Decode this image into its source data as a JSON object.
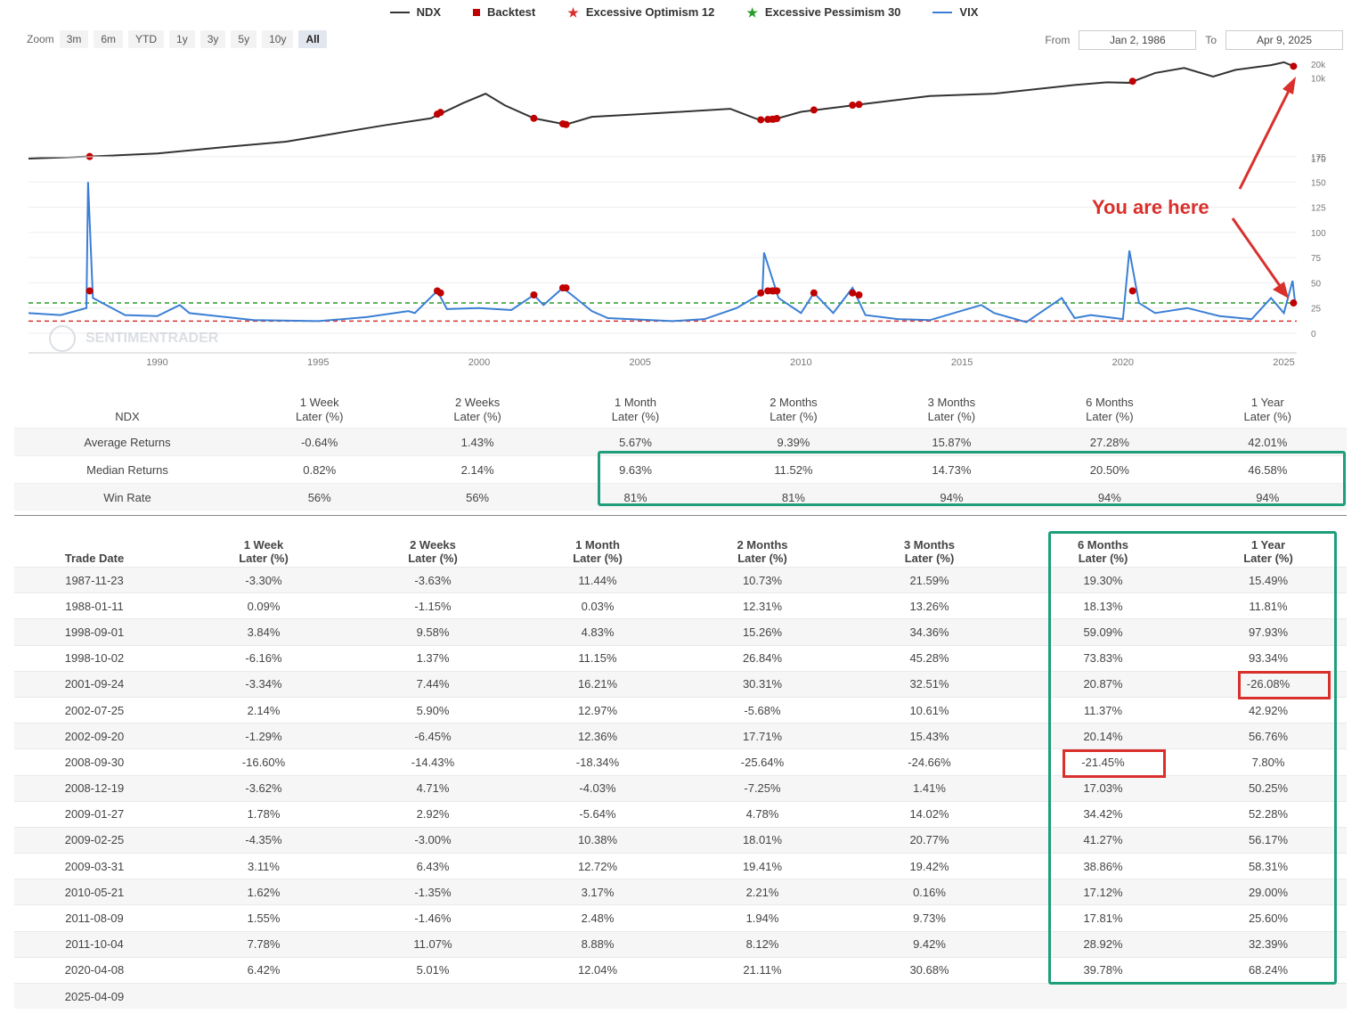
{
  "legend": [
    {
      "label": "NDX",
      "kind": "line",
      "color": "#333333"
    },
    {
      "label": "Backtest",
      "kind": "square",
      "color": "#c00000"
    },
    {
      "label": "Excessive Optimism 12",
      "kind": "star",
      "color": "#d9302c"
    },
    {
      "label": "Excessive Pessimism 30",
      "kind": "star",
      "color": "#2a9a2a"
    },
    {
      "label": "VIX",
      "kind": "line",
      "color": "#3b7fd4"
    }
  ],
  "zoom": {
    "label": "Zoom",
    "buttons": [
      "3m",
      "6m",
      "YTD",
      "1y",
      "3y",
      "5y",
      "10y",
      "All"
    ],
    "active": "All"
  },
  "range": {
    "from_label": "From",
    "from": "Jan 2, 1986",
    "to_label": "To",
    "to": "Apr 9, 2025"
  },
  "annotation": "You are here",
  "watermark": "SENTIMENTRADER",
  "chart_data": [
    {
      "type": "line",
      "name": "NDX",
      "title": "",
      "yscale": "log",
      "ylim": [
        170,
        20000
      ],
      "yticks": [
        "20k",
        "10k",
        "170"
      ],
      "xticks": [
        "1990",
        "1995",
        "2000",
        "2005",
        "2010",
        "2015",
        "2020",
        "2025"
      ],
      "xlim": [
        1986,
        2025.4
      ],
      "series": [
        {
          "name": "NDX",
          "color": "#333333",
          "x": [
            1986,
            1988,
            1990,
            1992,
            1994,
            1995.5,
            1997,
            1998.5,
            1999.5,
            2000.2,
            2000.8,
            2001.7,
            2002.7,
            2003.5,
            2005,
            2007.8,
            2008.7,
            2009.2,
            2010,
            2012,
            2014,
            2016,
            2018.5,
            2019.5,
            2020.2,
            2021,
            2021.9,
            2022.8,
            2023.5,
            2024.2,
            2024.6,
            2025.0,
            2025.3
          ],
          "y": [
            170,
            190,
            220,
            300,
            400,
            600,
            900,
            1300,
            2800,
            4500,
            2500,
            1300,
            950,
            1400,
            1600,
            2100,
            1200,
            1250,
            1800,
            2700,
            4000,
            4500,
            7000,
            8000,
            7800,
            12800,
            16500,
            10700,
            15000,
            17500,
            19000,
            22000,
            18000
          ]
        }
      ],
      "markers": {
        "name": "Backtest",
        "color": "#c00000",
        "x": [
          1987.9,
          1998.7,
          1998.8,
          2001.7,
          2002.6,
          2002.7,
          2008.75,
          2008.97,
          2009.1,
          2009.15,
          2009.25,
          2010.4,
          2011.6,
          2011.8,
          2020.3,
          2025.3
        ]
      }
    },
    {
      "type": "line",
      "name": "VIX",
      "ylim": [
        0,
        175
      ],
      "yticks": [
        "175",
        "150",
        "125",
        "100",
        "75",
        "50",
        "25",
        "0"
      ],
      "xticks": [
        "1990",
        "1995",
        "2000",
        "2005",
        "2010",
        "2015",
        "2020",
        "2025"
      ],
      "xlim": [
        1986,
        2025.4
      ],
      "series": [
        {
          "name": "VIX",
          "color": "#3b7fd4",
          "x": [
            1986,
            1987,
            1987.8,
            1987.85,
            1988,
            1989,
            1990,
            1990.7,
            1991,
            1993,
            1995,
            1996.5,
            1997.8,
            1998,
            1998.7,
            1999,
            2000,
            2001,
            2001.7,
            2002,
            2002.6,
            2002.8,
            2003.5,
            2004,
            2006,
            2007,
            2008,
            2008.8,
            2008.85,
            2009.3,
            2010,
            2010.4,
            2011,
            2011.6,
            2012,
            2013,
            2014,
            2015.6,
            2016,
            2017,
            2018.1,
            2018.5,
            2019,
            2020,
            2020.2,
            2020.5,
            2021,
            2022,
            2023,
            2024,
            2024.6,
            2025,
            2025.27,
            2025.35
          ],
          "y": [
            20,
            18,
            25,
            150,
            35,
            18,
            17,
            28,
            20,
            13,
            12,
            16,
            22,
            20,
            42,
            24,
            25,
            23,
            38,
            28,
            45,
            40,
            22,
            15,
            12,
            14,
            25,
            40,
            80,
            35,
            20,
            40,
            20,
            45,
            18,
            14,
            13,
            28,
            20,
            11,
            35,
            15,
            18,
            14,
            82,
            30,
            20,
            25,
            17,
            14,
            35,
            20,
            52,
            30
          ]
        }
      ],
      "thresholds": [
        {
          "name": "Excessive Pessimism 30",
          "value": 30,
          "color": "#2a9a2a"
        },
        {
          "name": "Excessive Optimism 12",
          "value": 12,
          "color": "#d9302c"
        }
      ],
      "markers": {
        "name": "Backtest",
        "color": "#c00000",
        "x": [
          1987.9,
          1998.7,
          1998.8,
          2001.7,
          2002.6,
          2002.7,
          2008.75,
          2008.97,
          2009.1,
          2009.15,
          2009.25,
          2010.4,
          2011.6,
          2011.8,
          2020.3,
          2025.3
        ],
        "y": [
          42,
          42,
          40,
          38,
          45,
          45,
          40,
          42,
          42,
          42,
          42,
          40,
          40,
          38,
          42,
          30
        ]
      }
    },
    {
      "type": "table",
      "name": "summary",
      "row_header": "NDX",
      "columns": [
        [
          "1 Week",
          "Later (%)"
        ],
        [
          "2 Weeks",
          "Later (%)"
        ],
        [
          "1 Month",
          "Later (%)"
        ],
        [
          "2 Months",
          "Later (%)"
        ],
        [
          "3 Months",
          "Later (%)"
        ],
        [
          "6 Months",
          "Later (%)"
        ],
        [
          "1 Year",
          "Later (%)"
        ]
      ],
      "rows": [
        {
          "label": "Average Returns",
          "values": [
            "-0.64%",
            "1.43%",
            "5.67%",
            "9.39%",
            "15.87%",
            "27.28%",
            "42.01%"
          ]
        },
        {
          "label": "Median Returns",
          "values": [
            "0.82%",
            "2.14%",
            "9.63%",
            "11.52%",
            "14.73%",
            "20.50%",
            "46.58%"
          ]
        },
        {
          "label": "Win Rate",
          "values": [
            "56%",
            "56%",
            "81%",
            "81%",
            "94%",
            "94%",
            "94%"
          ]
        }
      ]
    },
    {
      "type": "table",
      "name": "trades",
      "columns": [
        [
          "Trade Date",
          ""
        ],
        [
          "1 Week",
          "Later (%)"
        ],
        [
          "2 Weeks",
          "Later (%)"
        ],
        [
          "1 Month",
          "Later (%)"
        ],
        [
          "2 Months",
          "Later (%)"
        ],
        [
          "3 Months",
          "Later (%)"
        ],
        [
          "6 Months",
          "Later (%)"
        ],
        [
          "1 Year",
          "Later (%)"
        ]
      ],
      "rows": [
        [
          "1987-11-23",
          "-3.30%",
          "-3.63%",
          "11.44%",
          "10.73%",
          "21.59%",
          "19.30%",
          "15.49%"
        ],
        [
          "1988-01-11",
          "0.09%",
          "-1.15%",
          "0.03%",
          "12.31%",
          "13.26%",
          "18.13%",
          "11.81%"
        ],
        [
          "1998-09-01",
          "3.84%",
          "9.58%",
          "4.83%",
          "15.26%",
          "34.36%",
          "59.09%",
          "97.93%"
        ],
        [
          "1998-10-02",
          "-6.16%",
          "1.37%",
          "11.15%",
          "26.84%",
          "45.28%",
          "73.83%",
          "93.34%"
        ],
        [
          "2001-09-24",
          "-3.34%",
          "7.44%",
          "16.21%",
          "30.31%",
          "32.51%",
          "20.87%",
          "-26.08%"
        ],
        [
          "2002-07-25",
          "2.14%",
          "5.90%",
          "12.97%",
          "-5.68%",
          "10.61%",
          "11.37%",
          "42.92%"
        ],
        [
          "2002-09-20",
          "-1.29%",
          "-6.45%",
          "12.36%",
          "17.71%",
          "15.43%",
          "20.14%",
          "56.76%"
        ],
        [
          "2008-09-30",
          "-16.60%",
          "-14.43%",
          "-18.34%",
          "-25.64%",
          "-24.66%",
          "-21.45%",
          "7.80%"
        ],
        [
          "2008-12-19",
          "-3.62%",
          "4.71%",
          "-4.03%",
          "-7.25%",
          "1.41%",
          "17.03%",
          "50.25%"
        ],
        [
          "2009-01-27",
          "1.78%",
          "2.92%",
          "-5.64%",
          "4.78%",
          "14.02%",
          "34.42%",
          "52.28%"
        ],
        [
          "2009-02-25",
          "-4.35%",
          "-3.00%",
          "10.38%",
          "18.01%",
          "20.77%",
          "41.27%",
          "56.17%"
        ],
        [
          "2009-03-31",
          "3.11%",
          "6.43%",
          "12.72%",
          "19.41%",
          "19.42%",
          "38.86%",
          "58.31%"
        ],
        [
          "2010-05-21",
          "1.62%",
          "-1.35%",
          "3.17%",
          "2.21%",
          "0.16%",
          "17.12%",
          "29.00%"
        ],
        [
          "2011-08-09",
          "1.55%",
          "-1.46%",
          "2.48%",
          "1.94%",
          "9.73%",
          "17.81%",
          "25.60%"
        ],
        [
          "2011-10-04",
          "7.78%",
          "11.07%",
          "8.88%",
          "8.12%",
          "9.42%",
          "28.92%",
          "32.39%"
        ],
        [
          "2020-04-08",
          "6.42%",
          "5.01%",
          "12.04%",
          "21.11%",
          "30.68%",
          "39.78%",
          "68.24%"
        ],
        [
          "2025-04-09",
          "",
          "",
          "",
          "",
          "",
          "",
          ""
        ]
      ]
    }
  ]
}
